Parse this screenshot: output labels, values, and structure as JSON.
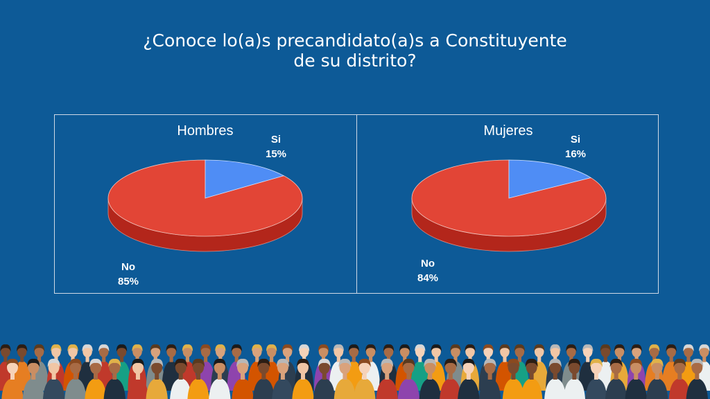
{
  "title": {
    "line1": "¿Conoce lo(a)s precandidato(a)s a Constituyente",
    "line2": "de su distrito?"
  },
  "colors": {
    "background": "#0d5a97",
    "no": "#e24536",
    "no_side": "#b3261b",
    "si": "#4f8df5",
    "si_side": "#2f63c0",
    "text_dark": "#ffffff",
    "panel_border": "#cfd9e6"
  },
  "chart_data": [
    {
      "type": "pie",
      "title": "Hombres",
      "categories": [
        "Si",
        "No"
      ],
      "values": [
        15,
        85
      ],
      "labels": [
        "15%",
        "85%"
      ]
    },
    {
      "type": "pie",
      "title": "Mujeres",
      "categories": [
        "Si",
        "No"
      ],
      "values": [
        16,
        84
      ],
      "labels": [
        "16%",
        "84%"
      ]
    }
  ]
}
